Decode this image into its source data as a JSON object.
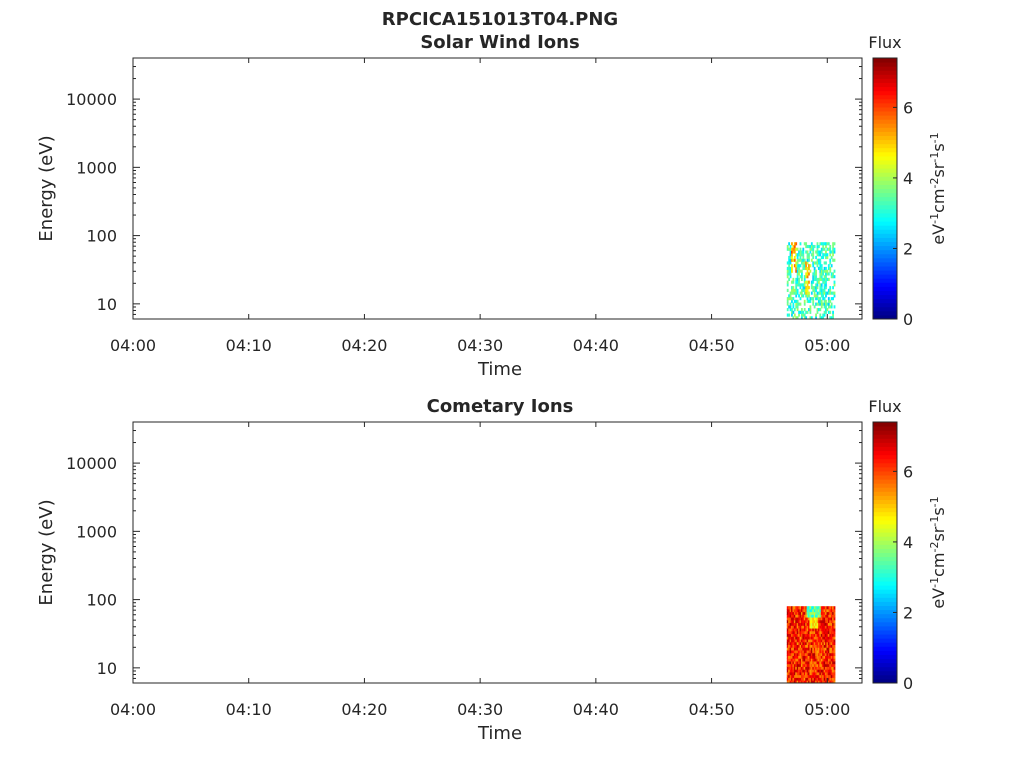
{
  "figure_title": "RPCICA151013T04.PNG",
  "panels": [
    {
      "title": "Solar Wind Ions",
      "xlabel": "Time",
      "ylabel": "Energy (eV)",
      "colorbar_title": "Flux",
      "colorbar_label_parts": [
        "eV",
        "-1",
        "cm",
        "-2",
        "sr",
        "-1",
        "s",
        "-1"
      ]
    },
    {
      "title": "Cometary Ions",
      "xlabel": "Time",
      "ylabel": "Energy (eV)",
      "colorbar_title": "Flux",
      "colorbar_label_parts": [
        "eV",
        "-1",
        "cm",
        "-2",
        "sr",
        "-1",
        "s",
        "-1"
      ]
    }
  ],
  "chart_data": [
    {
      "type": "heatmap",
      "title": "Solar Wind Ions",
      "xlabel": "Time",
      "ylabel": "Energy (eV)",
      "x_range": [
        "04:00",
        "05:03"
      ],
      "x_ticks": [
        "04:00",
        "04:10",
        "04:20",
        "04:30",
        "04:40",
        "04:50",
        "05:00"
      ],
      "y_scale": "log",
      "y_range": [
        6,
        40000
      ],
      "y_ticks": [
        10,
        100,
        1000,
        10000
      ],
      "colorbar": {
        "label": "Flux",
        "range": [
          0,
          7.4
        ],
        "ticks": [
          0,
          2,
          4,
          6
        ],
        "colormap": "jet"
      },
      "data_block": {
        "time_start": "04:56:30",
        "time_end": "05:00:40",
        "energy_min": 6,
        "energy_max": 80,
        "flux_level": "low-moderate (mostly 2.5–4, peaks ~6)"
      }
    },
    {
      "type": "heatmap",
      "title": "Cometary Ions",
      "xlabel": "Time",
      "ylabel": "Energy (eV)",
      "x_range": [
        "04:00",
        "05:03"
      ],
      "x_ticks": [
        "04:00",
        "04:10",
        "04:20",
        "04:30",
        "04:40",
        "04:50",
        "05:00"
      ],
      "y_scale": "log",
      "y_range": [
        6,
        40000
      ],
      "y_ticks": [
        10,
        100,
        1000,
        10000
      ],
      "colorbar": {
        "label": "Flux",
        "range": [
          0,
          7.4
        ],
        "ticks": [
          0,
          2,
          4,
          6
        ],
        "colormap": "jet"
      },
      "data_block": {
        "time_start": "04:56:30",
        "time_end": "05:00:40",
        "energy_min": 6,
        "energy_max": 80,
        "flux_level": "high (mostly 5.5–7, some ~3 near top at 04:58–04:59)"
      }
    }
  ]
}
